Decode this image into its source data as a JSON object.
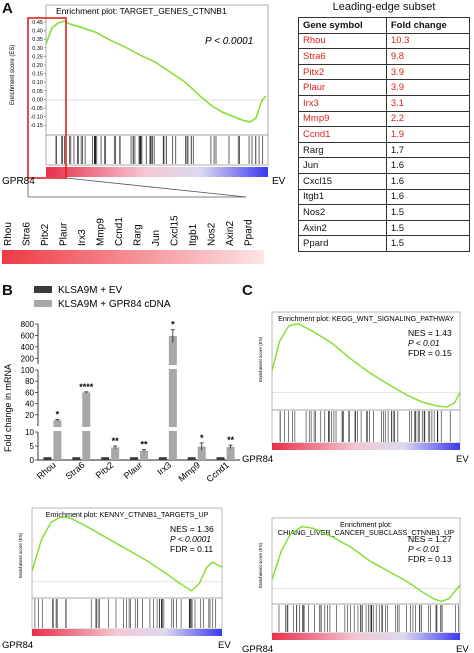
{
  "panel_a": {
    "letter": "A",
    "gsea_title": "Enrichment plot: TARGET_GENES_CTNNB1",
    "ylabel": "Enrichment score (ES)",
    "yticks": [
      "0.45",
      "0.40",
      "0.35",
      "0.30",
      "0.25",
      "0.20",
      "0.15",
      "0.10",
      "0.05",
      "0.00",
      "-0.05",
      "-0.10",
      "-0.15"
    ],
    "pvalue": "P < 0.0001",
    "left_label": "GPR84",
    "right_label": "EV",
    "zoom_genes": [
      "Rhou",
      "Stra6",
      "Pitx2",
      "Plaur",
      "Irx3",
      "Mmp9",
      "Ccnd1",
      "Rarg",
      "Jun",
      "Cxcl15",
      "Itgb1",
      "Nos2",
      "Axin2",
      "Ppard"
    ]
  },
  "leading_edge": {
    "title": "Leading-edge subset",
    "col_gene": "Gene symbol",
    "col_fc": "Fold change",
    "rows": [
      {
        "gene": "Rhou",
        "fc": "10.3",
        "red": true
      },
      {
        "gene": "Stra6",
        "fc": "9.8",
        "red": true
      },
      {
        "gene": "Pitx2",
        "fc": "3.9",
        "red": true
      },
      {
        "gene": "Plaur",
        "fc": "3.9",
        "red": true
      },
      {
        "gene": "Irx3",
        "fc": "3.1",
        "red": true
      },
      {
        "gene": "Mmp9",
        "fc": "2.2",
        "red": true
      },
      {
        "gene": "Ccnd1",
        "fc": "1.9",
        "red": true
      },
      {
        "gene": "Rarg",
        "fc": "1.7",
        "red": false
      },
      {
        "gene": "Jun",
        "fc": "1.6",
        "red": false
      },
      {
        "gene": "Cxcl15",
        "fc": "1.6",
        "red": false
      },
      {
        "gene": "Itgb1",
        "fc": "1.6",
        "red": false
      },
      {
        "gene": "Nos2",
        "fc": "1.5",
        "red": false
      },
      {
        "gene": "Axin2",
        "fc": "1.5",
        "red": false
      },
      {
        "gene": "Ppard",
        "fc": "1.5",
        "red": false
      }
    ]
  },
  "panel_b": {
    "letter": "B",
    "legend": [
      "KLSA9M + EV",
      "KLSA9M + GPR84 cDNA"
    ],
    "legend_colors": [
      "#3a3a3a",
      "#a8a8a8"
    ],
    "ylabel": "Fold change in mRNA",
    "yticks_top": [
      "800",
      "600",
      "400",
      "200"
    ],
    "yticks_mid": [
      "100",
      "80",
      "60",
      "40",
      "20"
    ],
    "yticks_bot": [
      "10",
      "5",
      "0"
    ],
    "categories": [
      "Rhou",
      "Stra6",
      "Pitx2",
      "Plaur",
      "Irx3",
      "Mmp9",
      "Ccnd1"
    ],
    "ev_values": [
      1,
      1,
      1,
      1,
      1,
      1,
      1
    ],
    "gpr84_values": [
      10.3,
      60,
      4.5,
      3.3,
      590,
      4.8,
      4.7
    ],
    "gpr84_errors": [
      1.0,
      1.0,
      0.5,
      0.4,
      110,
      1.3,
      0.6
    ],
    "significance": [
      "*",
      "****",
      "**",
      "**",
      "*",
      "*",
      "**"
    ]
  },
  "panel_c": {
    "letter": "C",
    "gsea_title": "Enrichment plot: KEGG_WNT_SIGNALING_PATHWAY",
    "nes": "NES = 1.43",
    "pvalue": "P < 0.01",
    "fdr": "FDR = 0.15",
    "ylabel": "Enrichment score (ES)",
    "left_label": "GPR84",
    "right_label": "EV"
  },
  "panel_d": {
    "gsea_title": "Enrichment plot: KENNY_CTNNB1_TARGETS_UP",
    "nes": "NES = 1.36",
    "pvalue": "P < 0.0001",
    "fdr": "FDR = 0.11",
    "ylabel": "Enrichment score (ES)",
    "left_label": "GPR84",
    "right_label": "EV"
  },
  "panel_e": {
    "gsea_title_1": "Enrichment plot:",
    "gsea_title_2": "CHIANG_LIVER_CANCER_SUBCLASS_CTNNB1_UP",
    "nes": "NES = 1.27",
    "pvalue": "P < 0.01",
    "fdr": "FDR = 0.13",
    "ylabel": "Enrichment score (ES)",
    "left_label": "GPR84",
    "right_label": "EV"
  },
  "chart_data": [
    {
      "type": "bar",
      "categories": [
        "Rhou",
        "Stra6",
        "Pitx2",
        "Plaur",
        "Irx3",
        "Mmp9",
        "Ccnd1"
      ],
      "series": [
        {
          "name": "KLSA9M + EV",
          "values": [
            1,
            1,
            1,
            1,
            1,
            1,
            1
          ]
        },
        {
          "name": "KLSA9M + GPR84 cDNA",
          "values": [
            10.3,
            60,
            4.5,
            3.3,
            590,
            4.8,
            4.7
          ]
        }
      ],
      "ylabel": "Fold change in mRNA",
      "legend": "top-left"
    }
  ]
}
